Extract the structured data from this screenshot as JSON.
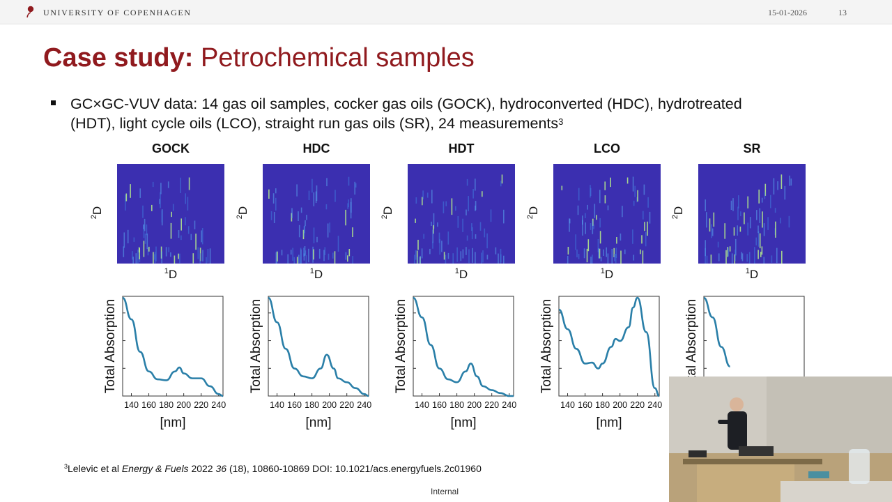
{
  "header": {
    "university": "UNIVERSITY OF COPENHAGEN",
    "date": "15-01-2026",
    "page": "13"
  },
  "slide": {
    "title_bold": "Case study:",
    "title_rest": "Petrochemical samples",
    "bullet_line1": "GC×GC-VUV data: 14 gas oil samples, cocker gas oils (GOCK), hydroconverted (HDC), hydrotreated",
    "bullet_line2": "(HDT), light cycle oils (LCO), straight run gas oils (SR), 24 measurements",
    "bullet_sup": "3",
    "footnote_sup": "3",
    "footnote_authors": "Lelevic et al ",
    "footnote_journal": "Energy & Fuels",
    "footnote_year": " 2022 ",
    "footnote_volume": "36",
    "footnote_rest": " (18), 10860-10869 DOI: 10.1021/acs.energyfuels.2c01960",
    "internal_label": "Internal"
  },
  "axis_labels": {
    "heatmap_y_sup": "2",
    "heatmap_y": "D",
    "heatmap_x_sup": "1",
    "heatmap_x": "D",
    "spectrum_y": "Total Absorption",
    "spectrum_x": "[nm]"
  },
  "colors": {
    "accent": "#901a1e",
    "line": "#2a7fa8",
    "heatmap_bg": "#3b2fb0"
  },
  "chart_data": [
    {
      "type": "line",
      "title": "GOCK",
      "xlabel": "[nm]",
      "ylabel": "Total Absorption",
      "xlim": [
        130,
        245
      ],
      "xticks": [
        140,
        160,
        180,
        200,
        220,
        240
      ],
      "x": [
        130,
        140,
        150,
        160,
        170,
        180,
        190,
        195,
        200,
        210,
        220,
        230,
        240,
        245
      ],
      "y": [
        1.0,
        0.78,
        0.45,
        0.25,
        0.17,
        0.16,
        0.25,
        0.29,
        0.23,
        0.18,
        0.18,
        0.1,
        0.02,
        0.0
      ]
    },
    {
      "type": "line",
      "title": "HDC",
      "xlabel": "[nm]",
      "ylabel": "Total Absorption",
      "xlim": [
        130,
        245
      ],
      "xticks": [
        140,
        160,
        180,
        200,
        220,
        240
      ],
      "x": [
        130,
        140,
        150,
        160,
        170,
        180,
        190,
        197,
        205,
        210,
        220,
        230,
        240,
        245
      ],
      "y": [
        1.0,
        0.75,
        0.48,
        0.28,
        0.2,
        0.18,
        0.28,
        0.42,
        0.28,
        0.18,
        0.14,
        0.08,
        0.02,
        0.0
      ]
    },
    {
      "type": "line",
      "title": "HDT",
      "xlabel": "[nm]",
      "ylabel": "Total Absorption",
      "xlim": [
        130,
        245
      ],
      "xticks": [
        140,
        160,
        180,
        200,
        220,
        240
      ],
      "x": [
        130,
        140,
        150,
        160,
        170,
        180,
        190,
        196,
        203,
        210,
        220,
        230,
        240,
        245
      ],
      "y": [
        1.0,
        0.8,
        0.52,
        0.28,
        0.17,
        0.14,
        0.25,
        0.33,
        0.2,
        0.1,
        0.06,
        0.03,
        0.0,
        0.0
      ]
    },
    {
      "type": "line",
      "title": "LCO",
      "xlabel": "[nm]",
      "ylabel": "Total Absorption",
      "xlim": [
        130,
        245
      ],
      "xticks": [
        140,
        160,
        180,
        200,
        220,
        240
      ],
      "x": [
        130,
        140,
        150,
        160,
        168,
        175,
        180,
        190,
        195,
        200,
        210,
        215,
        220,
        230,
        240,
        245
      ],
      "y": [
        0.88,
        0.68,
        0.48,
        0.33,
        0.34,
        0.28,
        0.33,
        0.5,
        0.58,
        0.56,
        0.7,
        0.9,
        1.0,
        0.65,
        0.08,
        0.0
      ]
    },
    {
      "type": "line",
      "title": "SR",
      "xlabel": "[nm]",
      "ylabel": "Total Absorption",
      "xlim": [
        130,
        245
      ],
      "xticks": [
        140,
        160,
        180,
        200,
        220,
        240
      ],
      "x": [
        130,
        140,
        150,
        160
      ],
      "y": [
        1.0,
        0.8,
        0.5,
        0.3
      ]
    }
  ],
  "heatmap_panels": [
    {
      "title": "GOCK",
      "seed": 3,
      "hot": 0.7
    },
    {
      "title": "HDC",
      "seed": 7,
      "hot": 0.4
    },
    {
      "title": "HDT",
      "seed": 11,
      "hot": 0.45
    },
    {
      "title": "LCO",
      "seed": 17,
      "hot": 0.6
    },
    {
      "title": "SR",
      "seed": 23,
      "hot": 0.75
    }
  ]
}
